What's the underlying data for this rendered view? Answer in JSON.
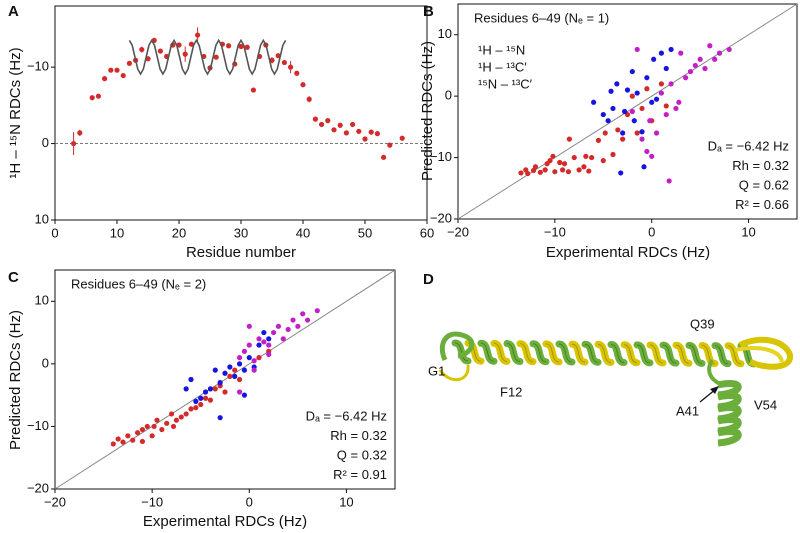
{
  "chart_data": [
    {
      "type": "scatter",
      "panel": "A",
      "xlabel": "Residue number",
      "ylabel": "¹H – ¹⁵N RDCs (Hz)",
      "xlim": [
        0,
        60
      ],
      "ylim": [
        10,
        -18
      ],
      "xticks": [
        0,
        10,
        20,
        30,
        40,
        50,
        60
      ],
      "yticks": [
        10,
        0,
        {
          "value": -10,
          "label": "−10"
        }
      ],
      "hline": 0,
      "series": [
        {
          "color": "#d42a2a",
          "x": [
            3,
            4,
            6,
            7,
            8,
            9,
            10,
            11,
            12,
            13,
            14,
            15,
            16,
            17,
            18,
            19,
            20,
            21,
            22,
            23,
            24,
            25,
            26,
            27,
            28,
            29,
            30,
            31,
            32,
            33,
            34,
            35,
            36,
            37,
            38,
            39,
            40,
            41,
            42,
            43,
            44,
            45,
            46,
            47,
            48,
            49,
            50,
            51,
            52,
            53,
            54,
            56
          ],
          "values": [
            0,
            -1.4,
            -6.0,
            -6.2,
            -8.5,
            -9.6,
            -9.6,
            -8.9,
            -10.5,
            -10.9,
            -12.3,
            -11.1,
            -13.5,
            -12.1,
            -11.4,
            -12.9,
            -12.9,
            -11.7,
            -13.0,
            -14.2,
            -11.4,
            -9.9,
            -11.3,
            -13.0,
            -12.8,
            -10.4,
            -12.7,
            -12.6,
            -7.0,
            -11.4,
            -12.9,
            -10.9,
            -11.5,
            -10.6,
            -10.0,
            -9.2,
            -7.7,
            -5.8,
            -3.2,
            -2.5,
            -3.0,
            -1.8,
            -2.4,
            -1.4,
            -2.5,
            -1.6,
            -0.6,
            -1.5,
            -1.3,
            1.8,
            0.2,
            -0.7
          ],
          "errors": [
            1.5,
            0.4,
            0.3,
            0.3,
            0.3,
            0.3,
            0.3,
            0.3,
            0.3,
            0.3,
            0.4,
            0.3,
            0.3,
            0.3,
            0.3,
            0.3,
            0.3,
            1.0,
            0.3,
            1.0,
            0.3,
            0.3,
            0.3,
            0.3,
            0.3,
            0.3,
            0.3,
            0.3,
            0.3,
            0.3,
            0.3,
            0.4,
            0.3,
            0.3,
            0.8,
            0.3,
            0.3,
            0.4,
            0.3,
            0.3,
            0.3,
            0.3,
            0.3,
            0.3,
            0.3,
            0.3,
            0.3,
            0.3,
            0.3,
            0.3,
            0.3,
            0.3
          ]
        },
        {
          "color": "#555555",
          "kind": "line",
          "x": [
            12,
            12.45,
            12.9,
            13.35,
            13.8,
            14.25,
            14.7,
            15.15,
            15.6,
            16.05,
            16.5,
            16.95,
            17.4,
            17.85,
            18.3,
            18.75,
            19.2,
            19.65,
            20.1,
            20.55,
            21,
            21.45,
            21.9,
            22.35,
            22.8,
            23.25,
            23.7,
            24.15,
            24.6,
            25.05,
            25.5,
            25.95,
            26.4,
            26.85,
            27.3,
            27.75,
            28.2,
            28.65,
            29.1,
            29.55,
            30,
            30.45,
            30.9,
            31.35,
            31.8,
            32.25,
            32.7,
            33.15,
            33.6,
            34.05,
            34.5,
            34.95,
            35.4,
            35.85,
            36.3,
            36.75,
            37.2
          ],
          "values": [
            -13.5,
            -12.86,
            -11.3,
            -9.74,
            -9.1,
            -9.74,
            -11.3,
            -12.86,
            -13.5,
            -12.86,
            -11.3,
            -9.74,
            -9.1,
            -9.74,
            -11.3,
            -12.86,
            -13.5,
            -12.86,
            -11.3,
            -9.74,
            -9.1,
            -9.74,
            -11.3,
            -12.86,
            -13.5,
            -12.86,
            -11.3,
            -9.74,
            -9.1,
            -9.74,
            -11.3,
            -12.86,
            -13.5,
            -12.86,
            -11.3,
            -9.74,
            -9.1,
            -9.74,
            -11.3,
            -12.86,
            -13.5,
            -12.86,
            -11.3,
            -9.74,
            -9.1,
            -9.74,
            -11.3,
            -12.86,
            -13.5,
            -12.86,
            -11.3,
            -9.74,
            -9.1,
            -9.74,
            -11.3,
            -12.86,
            -13.5
          ]
        }
      ]
    },
    {
      "type": "scatter",
      "panel": "B",
      "xlabel": "Experimental RDCs (Hz)",
      "ylabel": "Predicted RDCs (Hz)",
      "xlim": [
        -20,
        15
      ],
      "ylim": [
        -20,
        15
      ],
      "xticks": [
        {
          "value": -20,
          "label": "−20"
        },
        {
          "value": -10,
          "label": "−10"
        },
        0,
        10
      ],
      "yticks": [
        {
          "value": -20,
          "label": "−20"
        },
        {
          "value": -10,
          "label": "−10"
        },
        0,
        10
      ],
      "diagonal": true,
      "legend": true,
      "annotation": "Residues 6–49 (Nₑ = 1)",
      "stats": [
        "Dₐ = −6.42 Hz",
        "Rh = 0.32",
        "Q = 0.62",
        "R² = 0.66"
      ],
      "series": [
        {
          "name": "¹H – ¹⁵N",
          "color": "#d42a2a",
          "x": [
            -13.5,
            -13,
            -12.8,
            -12.2,
            -12,
            -11.5,
            -11,
            -10.8,
            -10.5,
            -10.2,
            -10,
            -9.5,
            -9.2,
            -9,
            -8.6,
            -8.5,
            -8,
            -7.5,
            -7,
            -6.8,
            -6.5,
            -6.2,
            -5.5,
            -5,
            -4.8,
            -4,
            -3.5,
            -3,
            -2.5,
            -2,
            -1.5,
            -1,
            -0.5,
            0,
            1,
            1.5
          ],
          "values": [
            -12.5,
            -12,
            -12.6,
            -12.1,
            -11.5,
            -12.4,
            -12,
            -11,
            -10.5,
            -9.8,
            -12.3,
            -10.8,
            -12,
            -11,
            -12.3,
            -7,
            -10,
            -12,
            -11.5,
            -9.8,
            -12.2,
            -10,
            -7.2,
            -10.5,
            -6,
            -9.5,
            -5.5,
            -7,
            -3,
            0,
            -6,
            -2,
            1.2,
            -4,
            2,
            -1.6
          ]
        },
        {
          "name": "¹H – ¹³C′",
          "color": "#1515e0",
          "x": [
            -6,
            -5,
            -4.5,
            -4,
            -3.6,
            -3.2,
            -3,
            -2.8,
            -2.5,
            -2,
            -1.8,
            -1.5,
            -1,
            -0.5,
            0,
            0.2,
            0.5,
            1,
            1.5,
            2,
            -0.8,
            -4.2
          ],
          "values": [
            -1,
            -3,
            -4,
            -2,
            2,
            -12.5,
            -6,
            -2.5,
            1,
            4,
            -4,
            0.5,
            -5.8,
            3,
            -1,
            6,
            -0.5,
            7,
            4.5,
            7.6,
            -11.5,
            0.8
          ]
        },
        {
          "name": "¹⁵N – ¹³C′",
          "color": "#c21fc8",
          "x": [
            -2,
            -1,
            -0.5,
            0,
            0.5,
            1,
            1.5,
            2,
            2.5,
            3,
            3.5,
            4,
            4.5,
            5,
            5.5,
            6,
            6.5,
            7,
            8,
            -1.5,
            -0.2,
            2.8,
            1.8
          ],
          "values": [
            -2.5,
            -7,
            -9,
            -9.8,
            -6,
            0.5,
            -3,
            2,
            -2,
            7,
            3,
            4,
            5,
            6,
            4.5,
            8.2,
            6,
            7,
            7.6,
            7.6,
            -4,
            -1,
            -13.8
          ]
        }
      ]
    },
    {
      "type": "scatter",
      "panel": "C",
      "xlabel": "Experimental RDCs (Hz)",
      "ylabel": "Predicted RDCs (Hz)",
      "xlim": [
        -20,
        15
      ],
      "ylim": [
        -20,
        15
      ],
      "xticks": [
        {
          "value": -20,
          "label": "−20"
        },
        {
          "value": -10,
          "label": "−10"
        },
        0,
        10
      ],
      "yticks": [
        {
          "value": -20,
          "label": "−20"
        },
        {
          "value": -10,
          "label": "−10"
        },
        0,
        10
      ],
      "diagonal": true,
      "legend": false,
      "annotation": "Residues 6–49 (Nₑ = 2)",
      "stats": [
        "Dₐ = −6.42 Hz",
        "Rh = 0.32",
        "Q = 0.32",
        "R² = 0.91"
      ],
      "series": [
        {
          "color": "#d42a2a",
          "x": [
            -14,
            -13.5,
            -13,
            -12.5,
            -12,
            -11.5,
            -11,
            -11,
            -10.5,
            -10,
            -9.8,
            -9.5,
            -9,
            -8.5,
            -8,
            -7.8,
            -7.5,
            -7,
            -6.5,
            -6,
            -5.5,
            -5,
            -4.5,
            -4,
            -3.5,
            -3,
            -2.5,
            -2,
            -1.5,
            -1,
            1,
            2
          ],
          "values": [
            -12.8,
            -12,
            -12.5,
            -11.5,
            -12.2,
            -11,
            -10.5,
            -12.4,
            -10,
            -11.5,
            -10,
            -9,
            -10.5,
            -9.5,
            -8,
            -10,
            -9,
            -8.5,
            -8,
            -7.2,
            -7,
            -6.5,
            -5.5,
            -5.8,
            -4,
            -3.5,
            -4.5,
            -2,
            -1,
            -2.5,
            1,
            2
          ]
        },
        {
          "color": "#1515e0",
          "x": [
            -6.5,
            -6,
            -5.5,
            -5,
            -4.5,
            -4,
            -3.5,
            -3,
            -2.5,
            -2,
            -1.5,
            -1,
            -0.5,
            0,
            0.5,
            1,
            1.5,
            2,
            -3,
            -0.5
          ],
          "values": [
            -4,
            -2.5,
            -6,
            -5.5,
            -4.5,
            -4,
            -1,
            -3,
            -1.5,
            -0.5,
            -2,
            0,
            -1,
            1,
            -0.5,
            3,
            5,
            4,
            -8.6,
            -5
          ]
        },
        {
          "color": "#c21fc8",
          "x": [
            -1,
            -0.5,
            0,
            0.5,
            1,
            1.5,
            2,
            2.5,
            3,
            3.5,
            4,
            4.5,
            5,
            5.5,
            6,
            7,
            -1,
            0,
            0.5,
            2
          ],
          "values": [
            1,
            2,
            3,
            0.5,
            4,
            3.5,
            1.5,
            5,
            6,
            4,
            5.5,
            7,
            6,
            8,
            7,
            8.5,
            -4.5,
            6,
            -1,
            3
          ]
        }
      ]
    }
  ],
  "structure": {
    "panel": "D",
    "labels": [
      "G1",
      "F12",
      "Q39",
      "A41",
      "V54"
    ]
  }
}
